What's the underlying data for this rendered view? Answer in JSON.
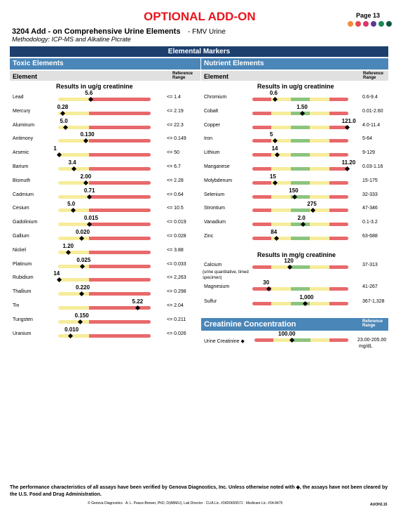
{
  "header": {
    "banner": "OPTIONAL ADD-ON",
    "page": "Page 13",
    "title": "3204 Add - on Comprehensive Urine Elements",
    "subtitle": "- FMV Urine",
    "methodology": "Methodology: ICP-MS and Alkaline Picrate"
  },
  "section_title": "Elemental Markers",
  "toxic": {
    "title": "Toxic Elements",
    "element_header": "Element",
    "range_header": "Reference Range",
    "units": "Results in ug/g creatinine",
    "rows": [
      [
        "Lead",
        "5.6",
        "<= 1.4"
      ],
      [
        "Mercury",
        "0.28",
        "<= 2.19"
      ],
      [
        "Aluminum",
        "5.0",
        "<= 22.3"
      ],
      [
        "Antimony",
        "0.130",
        "<= 0.149"
      ],
      [
        "Arsenic",
        "1",
        "<= 50"
      ],
      [
        "Barium",
        "3.4",
        "<= 6.7"
      ],
      [
        "Bismuth",
        "2.00",
        "<= 2.28"
      ],
      [
        "Cadmium",
        "0.71",
        "<= 0.64"
      ],
      [
        "Cesium",
        "5.0",
        "<= 10.5"
      ],
      [
        "Gadolinium",
        "0.015",
        "<= 0.019"
      ],
      [
        "Gallium",
        "0.020",
        "<= 0.028"
      ],
      [
        "Nickel",
        "1.20",
        "<= 3.88"
      ],
      [
        "Platinum",
        "0.025",
        "<= 0.033"
      ],
      [
        "Rubidium",
        "14",
        "<= 2,263"
      ],
      [
        "Thallium",
        "0.220",
        "<= 0.298"
      ],
      [
        "Tin",
        "5.22",
        "<= 2.04"
      ],
      [
        "Tungsten",
        "0.150",
        "<= 0.211"
      ],
      [
        "Uranium",
        "0.010",
        "<= 0.026"
      ]
    ]
  },
  "nutrient": {
    "title": "Nutrient Elements",
    "element_header": "Element",
    "range_header": "Reference Range",
    "units": "Results in ug/g creatinine",
    "rows": [
      [
        "Chromium",
        "0.6",
        "0.6-9.4"
      ],
      [
        "Cobalt",
        "1.50",
        "0.01-2.60"
      ],
      [
        "Copper",
        "121.0",
        "4.0-11.4"
      ],
      [
        "Iron",
        "5",
        "5-64"
      ],
      [
        "Lithium",
        "14",
        "9-129"
      ],
      [
        "Manganese",
        "11.20",
        "0.03-1.16"
      ],
      [
        "Molybdenum",
        "15",
        "15-175"
      ],
      [
        "Selenium",
        "150",
        "32-333"
      ],
      [
        "Strontium",
        "275",
        "47-346"
      ],
      [
        "Vanadium",
        "2.0",
        "0.1-3.2"
      ],
      [
        "Zinc",
        "84",
        "63-688"
      ]
    ],
    "units2": "Results in mg/g creatinine",
    "rows2": [
      [
        "Calcium",
        "120",
        "37-313"
      ],
      [
        "Magnesium",
        "30",
        "41-267"
      ],
      [
        "Sulfur",
        "1,000",
        "367-1,328"
      ]
    ],
    "calcium_note": "(urine quantitative, timed specimen)"
  },
  "creatinine": {
    "title": "Creatinine Concentration",
    "range_header": "Reference Range",
    "name": "Urine Creatinine ◆",
    "value": "100.00",
    "range": "23.00-205.00",
    "unit": "mg/dL"
  },
  "footer": {
    "note": "The performance characteristics of all assays have been verified by Genova Diagnostics, Inc. Unless otherwise noted with ◆, the assays have not been cleared by the U.S. Food and Drug Administration.",
    "credits": "© Genova Diagnostics · A. L. Peace-Brewer, PhD, D(ABMLI), Lab Director · CLIA Lic. #34D0655571 · Medicare Lic. #34-8475",
    "code": "AUOH2.15"
  }
}
